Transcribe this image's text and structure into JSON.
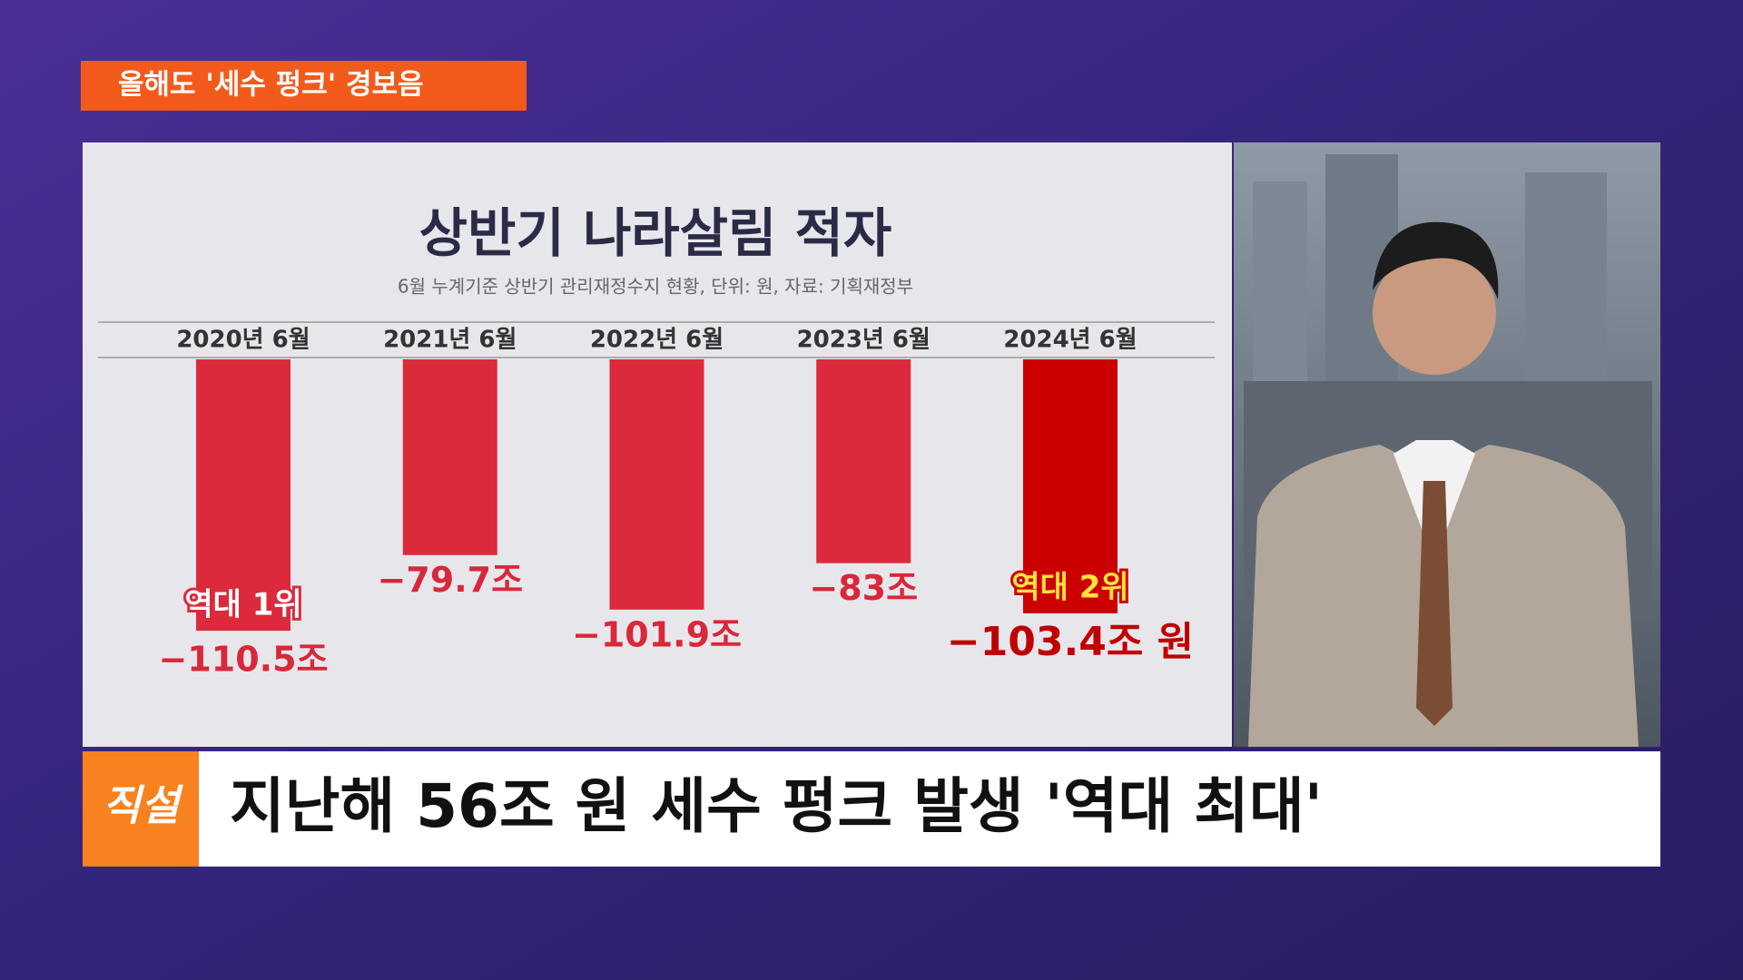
{
  "header": {
    "tag": "올해도 '세수 펑크' 경보음"
  },
  "chart_data": {
    "type": "bar",
    "title": "상반기 나라살림 적자",
    "subtitle": "6월 누계기준 상반기 관리재정수지 현황, 단위: 원, 자료: 기획재정부",
    "categories": [
      "2020년 6월",
      "2021년 6월",
      "2022년 6월",
      "2023년 6월",
      "2024년 6월"
    ],
    "values": [
      -110.5,
      -79.7,
      -101.9,
      -83,
      -103.4
    ],
    "value_labels": [
      "−110.5조",
      "−79.7조",
      "−101.9조",
      "−83조",
      "−103.4조 원"
    ],
    "colors": [
      "#dc2a3c",
      "#dc2a3c",
      "#dc2a3c",
      "#dc2a3c",
      "#cc0000"
    ],
    "annotations": [
      "역대 1위",
      "역대 2위"
    ],
    "ylim": [
      -150,
      0
    ]
  },
  "caption": {
    "logo": "직설",
    "text": "지난해 56조 원 세수 펑크 발생 '역대 최대'"
  }
}
